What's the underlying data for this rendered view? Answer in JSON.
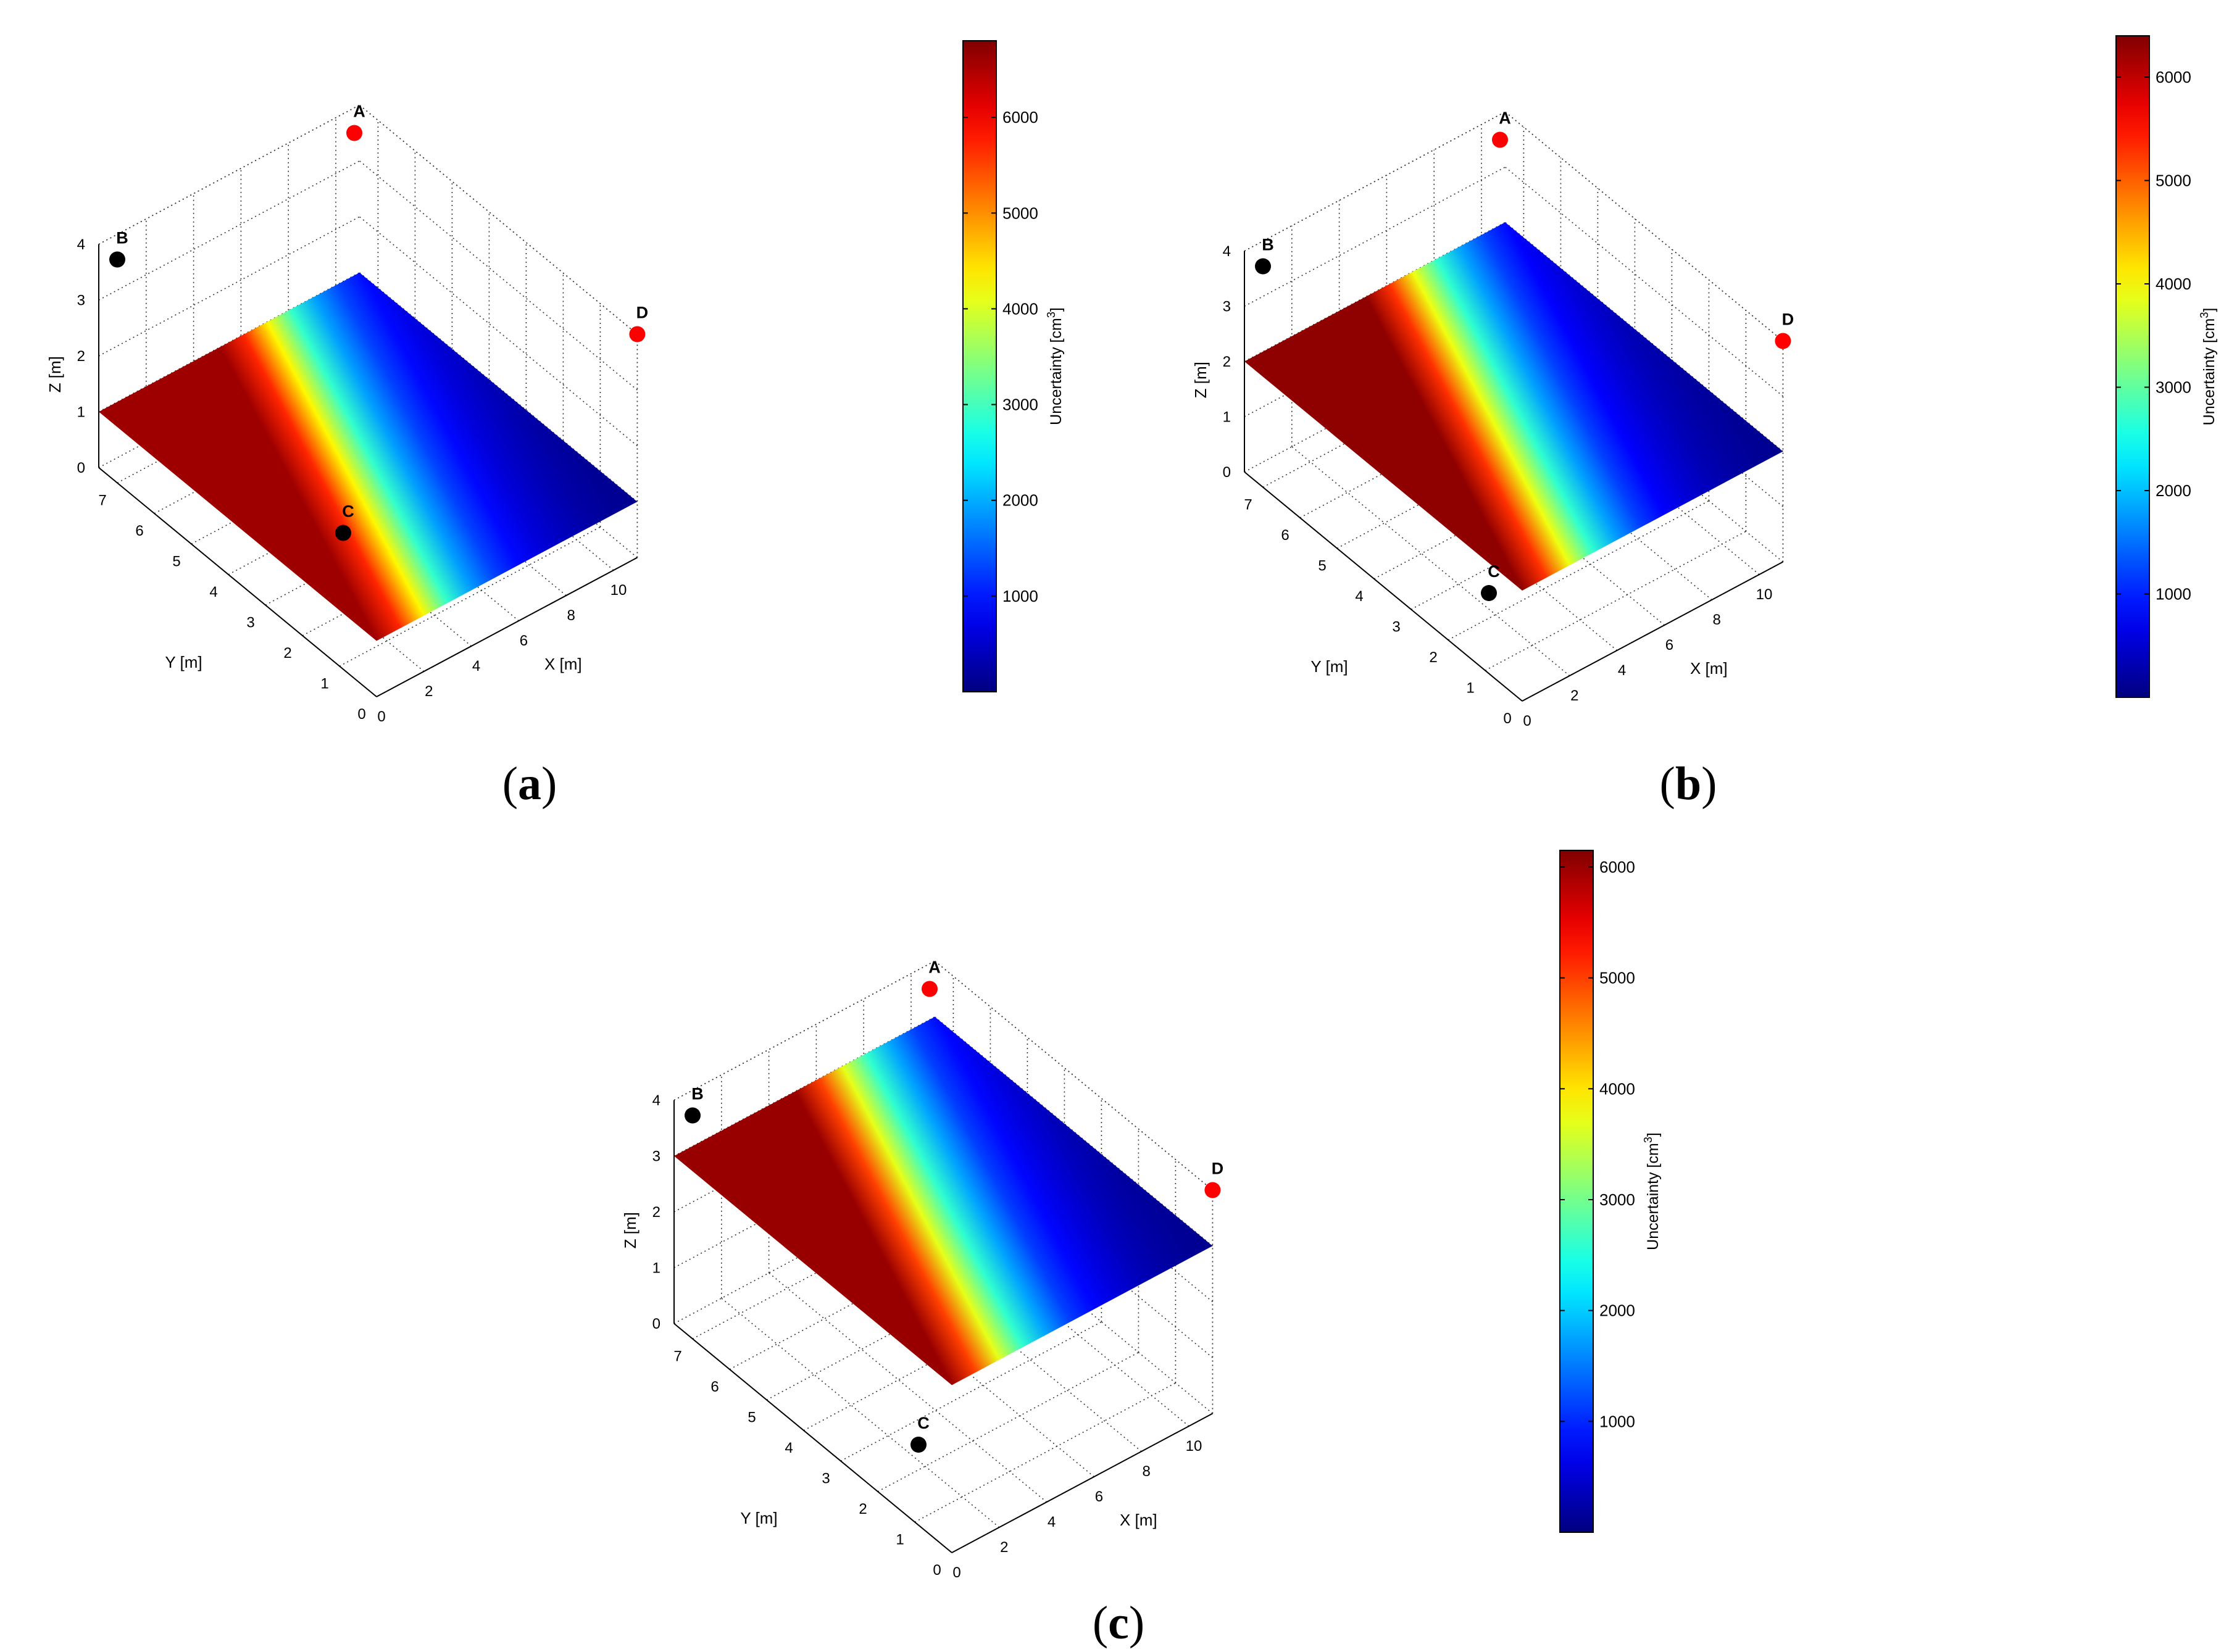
{
  "panels": [
    {
      "label": "a",
      "points": [
        {
          "name": "A",
          "x": 10,
          "y": 7,
          "z": 4,
          "color": "#ff0000"
        },
        {
          "name": "B",
          "x": 0,
          "y": 7,
          "z": 4,
          "color": "#000000"
        },
        {
          "name": "C",
          "x": 2.5,
          "y": 2.5,
          "z": 1,
          "color": "#000000"
        },
        {
          "name": "D",
          "x": 11,
          "y": 0,
          "z": 4,
          "color": "#ff0000"
        }
      ],
      "surface_z": 1,
      "colorbar": {
        "min": 0,
        "max": 6800,
        "ticks": [
          1000,
          2000,
          3000,
          4000,
          5000,
          6000
        ]
      }
    },
    {
      "label": "b",
      "points": [
        {
          "name": "A",
          "x": 10,
          "y": 7,
          "z": 4,
          "color": "#ff0000"
        },
        {
          "name": "B",
          "x": 0,
          "y": 7,
          "z": 4,
          "color": "#000000"
        },
        {
          "name": "C",
          "x": 2.5,
          "y": 2.5,
          "z": 0,
          "color": "#000000"
        },
        {
          "name": "D",
          "x": 11,
          "y": 0,
          "z": 4,
          "color": "#ff0000"
        }
      ],
      "surface_z": 2,
      "colorbar": {
        "min": 0,
        "max": 6400,
        "ticks": [
          1000,
          2000,
          3000,
          4000,
          5000,
          6000
        ]
      }
    },
    {
      "label": "c",
      "points": [
        {
          "name": "A",
          "x": 10,
          "y": 7,
          "z": 4,
          "color": "#ff0000"
        },
        {
          "name": "B",
          "x": 0,
          "y": 7,
          "z": 4,
          "color": "#000000"
        },
        {
          "name": "C",
          "x": 2.5,
          "y": 2.5,
          "z": 0,
          "color": "#000000"
        },
        {
          "name": "D",
          "x": 11,
          "y": 0,
          "z": 4,
          "color": "#ff0000"
        }
      ],
      "surface_z": 3,
      "colorbar": {
        "min": 0,
        "max": 6150,
        "ticks": [
          1000,
          2000,
          3000,
          4000,
          5000,
          6000
        ]
      }
    }
  ],
  "axes": {
    "xlabel": "X [m]",
    "ylabel": "Y [m]",
    "zlabel": "Z [m]",
    "x_ticks": [
      0,
      2,
      4,
      6,
      8,
      10
    ],
    "y_ticks": [
      0,
      1,
      2,
      3,
      4,
      5,
      6,
      7
    ],
    "z_ticks": [
      0,
      1,
      2,
      3,
      4
    ],
    "xlim": [
      0,
      11
    ],
    "ylim": [
      0,
      7.5
    ],
    "zlim": [
      0,
      4
    ],
    "grid": true
  },
  "colorbar_label": "Uncertainty [cm",
  "colorbar_label_sup": "3",
  "colorbar_label_end": "]",
  "chart_data": [
    {
      "type": "surface",
      "title": "",
      "xlabel": "X [m]",
      "ylabel": "Y [m]",
      "zlabel": "Z [m]",
      "colorbar_label": "Uncertainty [cm3]",
      "xlim": [
        0,
        11
      ],
      "ylim": [
        0,
        7.5
      ],
      "zlim": [
        0,
        4
      ],
      "x_ticks": [
        0,
        2,
        4,
        6,
        8,
        10
      ],
      "y_ticks": [
        0,
        1,
        2,
        3,
        4,
        5,
        6,
        7
      ],
      "z_ticks": [
        0,
        1,
        2,
        3,
        4
      ],
      "surface_z": 1,
      "surface_profile": {
        "x": [
          0,
          1,
          2,
          3,
          4,
          5,
          6,
          7,
          8,
          9,
          10,
          11
        ],
        "uncertainty": [
          6600,
          5700,
          4300,
          2900,
          1900,
          1300,
          900,
          600,
          400,
          250,
          150,
          100
        ]
      },
      "points": {
        "A": [
          10,
          7,
          4
        ],
        "B": [
          0,
          7,
          4
        ],
        "C": [
          2.5,
          2.5,
          1
        ],
        "D": [
          11,
          0,
          4
        ]
      },
      "colorbar_range": [
        0,
        6800
      ]
    },
    {
      "type": "surface",
      "title": "",
      "xlabel": "X [m]",
      "ylabel": "Y [m]",
      "zlabel": "Z [m]",
      "colorbar_label": "Uncertainty [cm3]",
      "xlim": [
        0,
        11
      ],
      "ylim": [
        0,
        7.5
      ],
      "zlim": [
        0,
        4
      ],
      "x_ticks": [
        0,
        2,
        4,
        6,
        8,
        10
      ],
      "y_ticks": [
        0,
        1,
        2,
        3,
        4,
        5,
        6,
        7
      ],
      "z_ticks": [
        0,
        1,
        2,
        3,
        4
      ],
      "surface_z": 2,
      "surface_profile": {
        "x": [
          0,
          1,
          2,
          3,
          4,
          5,
          6,
          7,
          8,
          9,
          10,
          11
        ],
        "uncertainty": [
          6300,
          5300,
          3900,
          2700,
          1800,
          1200,
          800,
          550,
          350,
          220,
          140,
          90
        ]
      },
      "points": {
        "A": [
          10,
          7,
          4
        ],
        "B": [
          0,
          7,
          4
        ],
        "C": [
          2.5,
          2.5,
          0
        ],
        "D": [
          11,
          0,
          4
        ]
      },
      "colorbar_range": [
        0,
        6400
      ]
    },
    {
      "type": "surface",
      "title": "",
      "xlabel": "X [m]",
      "ylabel": "Y [m]",
      "zlabel": "Z [m]",
      "colorbar_label": "Uncertainty [cm3]",
      "xlim": [
        0,
        11
      ],
      "ylim": [
        0,
        7.5
      ],
      "zlim": [
        0,
        4
      ],
      "x_ticks": [
        0,
        2,
        4,
        6,
        8,
        10
      ],
      "y_ticks": [
        0,
        1,
        2,
        3,
        4,
        5,
        6,
        7
      ],
      "z_ticks": [
        0,
        1,
        2,
        3,
        4
      ],
      "surface_z": 3,
      "surface_profile": {
        "x": [
          0,
          1,
          2,
          3,
          4,
          5,
          6,
          7,
          8,
          9,
          10,
          11
        ],
        "uncertainty": [
          6000,
          5000,
          3700,
          2600,
          1750,
          1150,
          800,
          550,
          350,
          220,
          140,
          90
        ]
      },
      "points": {
        "A": [
          10,
          7,
          4
        ],
        "B": [
          0,
          7,
          4
        ],
        "C": [
          2.5,
          2.5,
          0
        ],
        "D": [
          11,
          0,
          4
        ]
      },
      "colorbar_range": [
        0,
        6150
      ]
    }
  ]
}
